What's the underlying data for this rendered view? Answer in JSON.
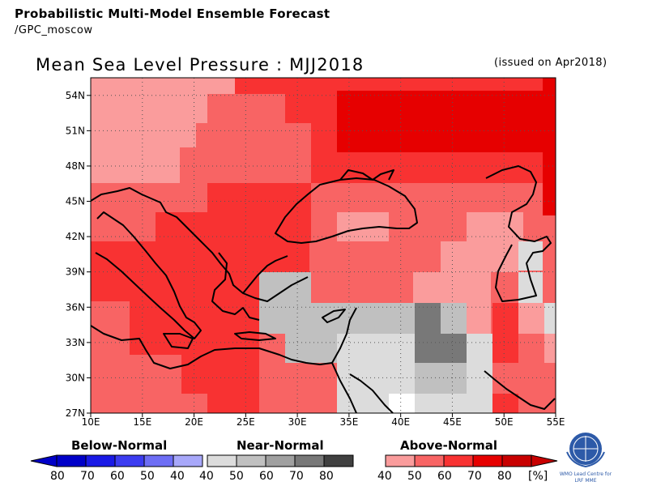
{
  "header": {
    "title": "Probabilistic Multi-Model Ensemble Forecast",
    "subtitle": "/GPC_moscow"
  },
  "map": {
    "title": "Mean Sea Level Pressure : MJJ2018",
    "issued": "(issued on Apr2018)",
    "lon_labels": [
      "10E",
      "15E",
      "20E",
      "25E",
      "30E",
      "35E",
      "40E",
      "45E",
      "50E",
      "55E"
    ],
    "lat_labels": [
      "54N",
      "51N",
      "48N",
      "45N",
      "42N",
      "39N",
      "36N",
      "33N",
      "30N",
      "27N"
    ],
    "lon_range": [
      10,
      55
    ],
    "lat_range": [
      27,
      55.5
    ]
  },
  "legend": {
    "below": {
      "title": "Below-Normal",
      "labels": [
        "80",
        "70",
        "60",
        "50",
        "40"
      ],
      "colors": [
        "#0000c8",
        "#1a1ae6",
        "#3c3cf0",
        "#6e6ef5",
        "#a8a8fa"
      ]
    },
    "near": {
      "title": "Near-Normal",
      "labels": [
        "40",
        "50",
        "60",
        "70",
        "80"
      ],
      "colors": [
        "#dcdcdc",
        "#c0c0c0",
        "#a0a0a0",
        "#787878",
        "#404040"
      ]
    },
    "above": {
      "title": "Above-Normal",
      "labels": [
        "40",
        "50",
        "60",
        "70",
        "80",
        "[%]"
      ],
      "colors": [
        "#fa9c9c",
        "#f86464",
        "#f83232",
        "#e60000",
        "#c80000"
      ]
    }
  },
  "logo": {
    "text1": "WMO Lead Centre for",
    "text2": "LRF MME"
  },
  "colors": {
    "above40": "#fa9c9c",
    "above50": "#f86464",
    "above60": "#f83232",
    "above70": "#e60000",
    "above80": "#c80000"
  }
}
